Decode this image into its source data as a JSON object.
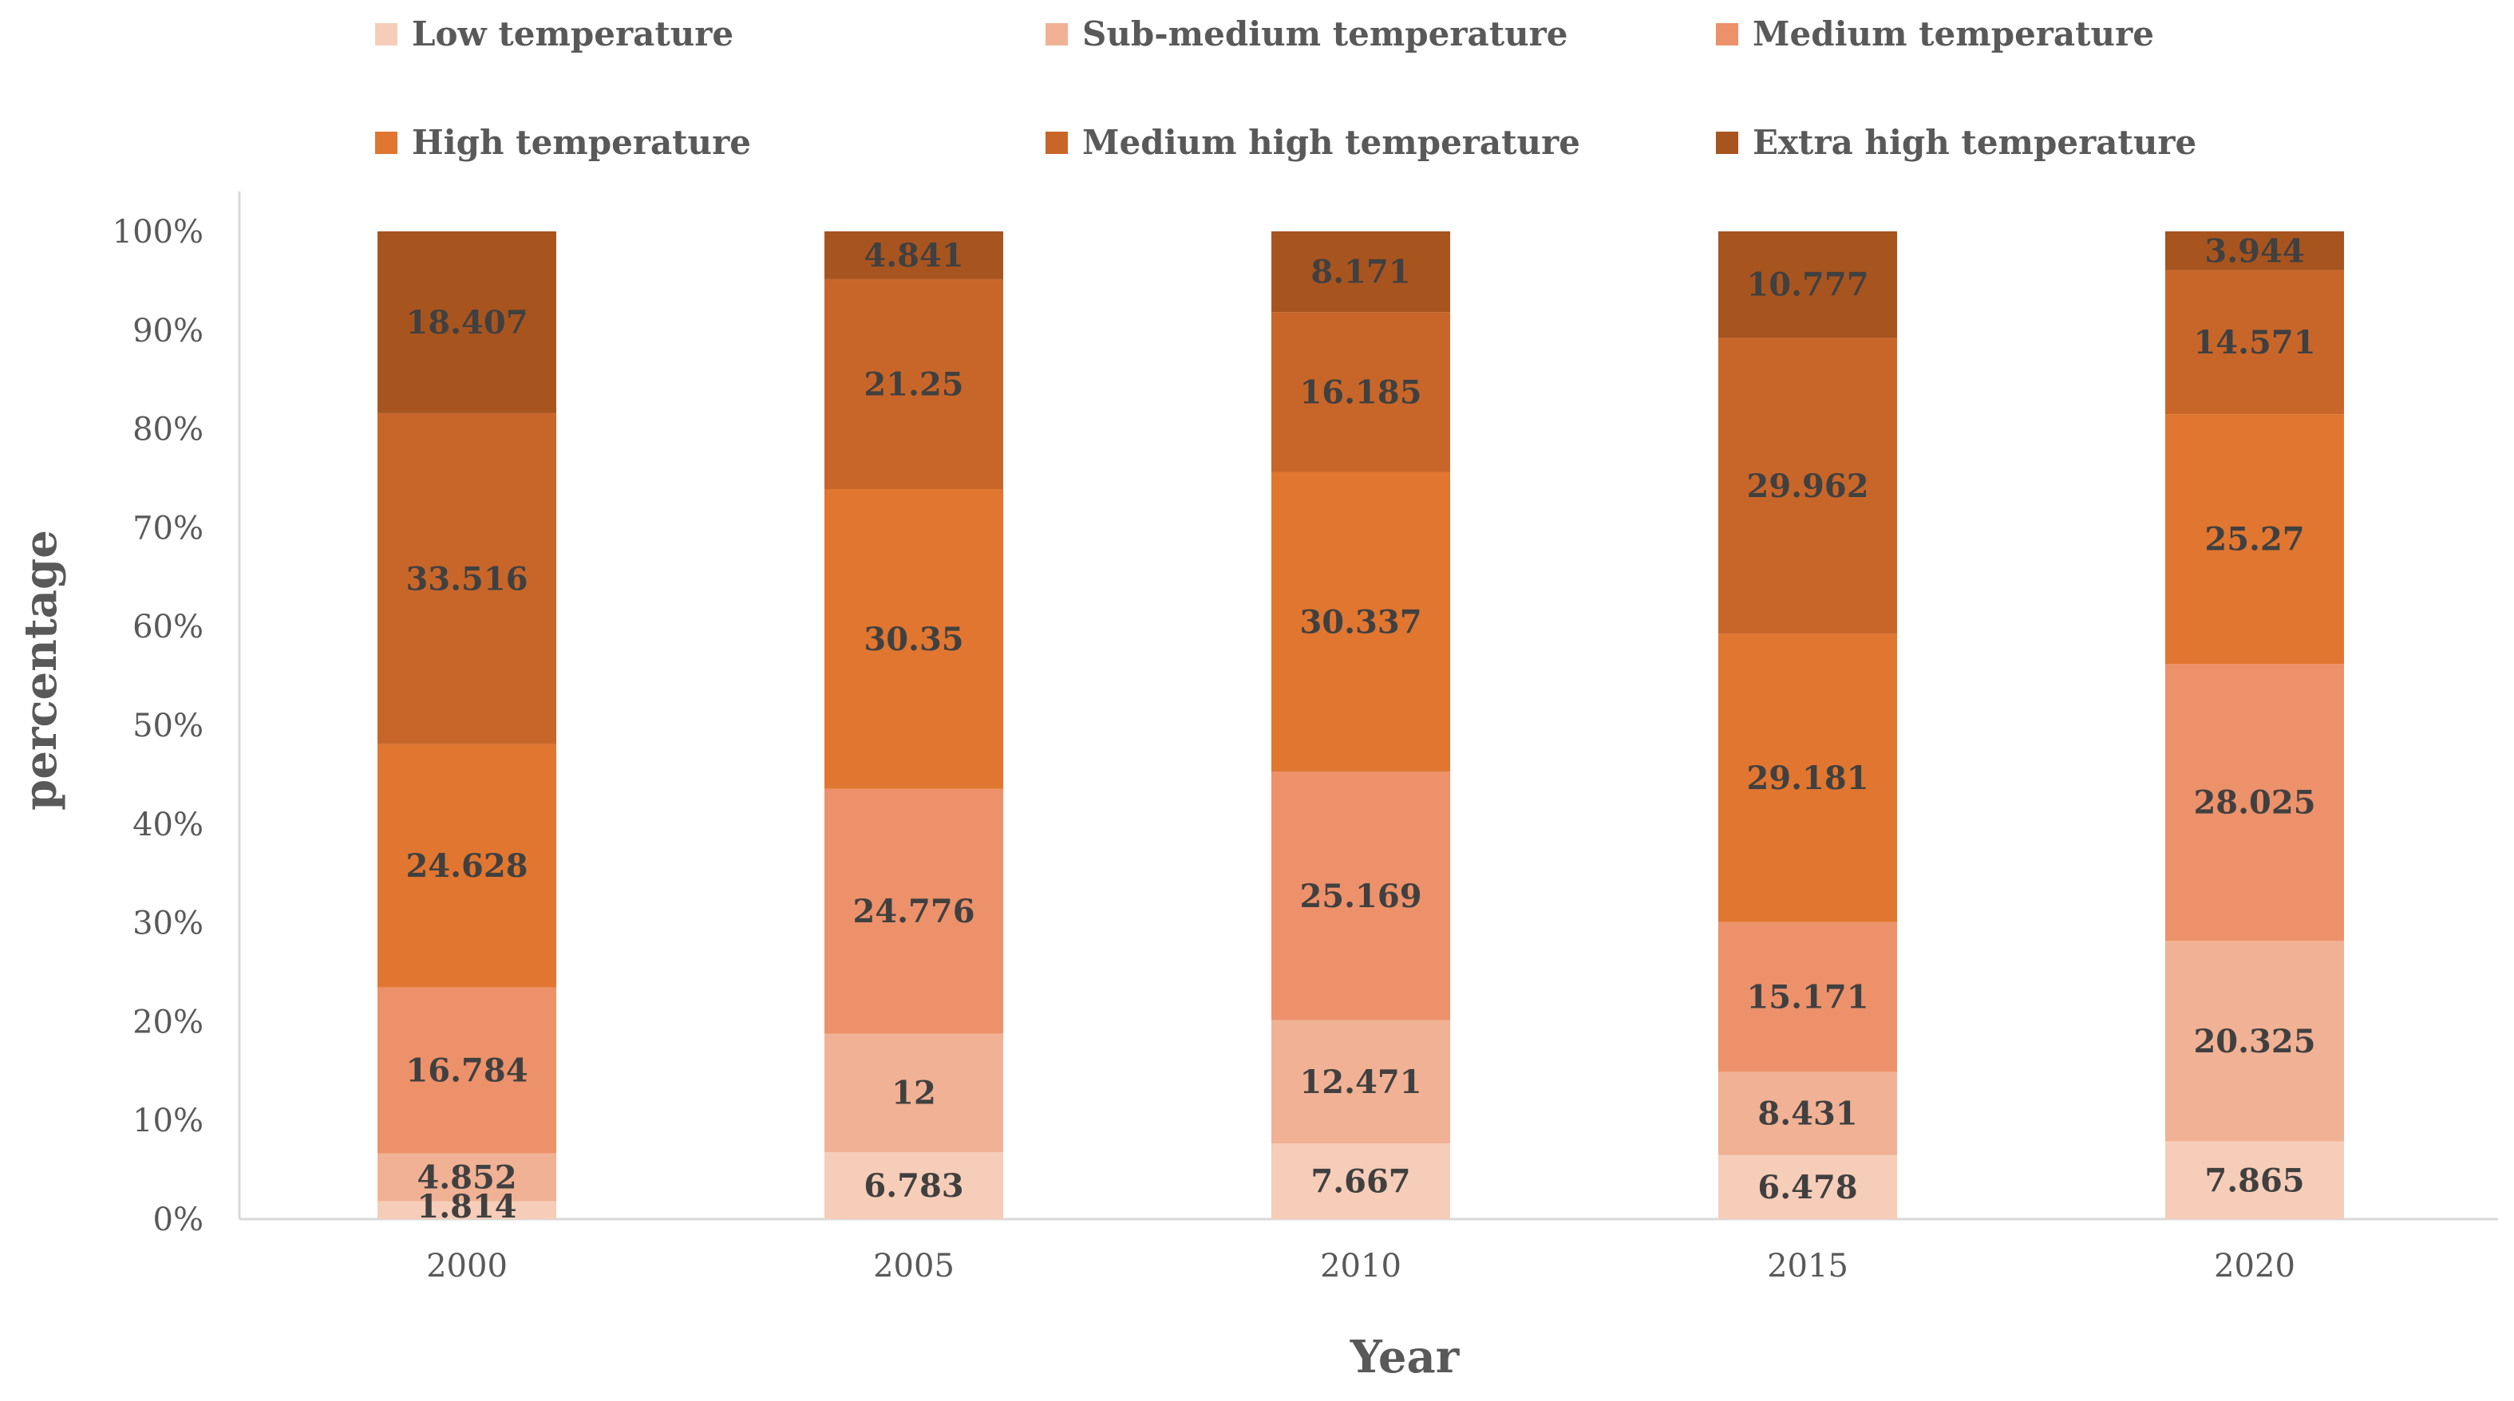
{
  "chart_data": {
    "type": "bar",
    "stacked": true,
    "normalized": true,
    "categories": [
      "2000",
      "2005",
      "2010",
      "2015",
      "2020"
    ],
    "series": [
      {
        "name": "Low temperature",
        "color": "#f6cdb8",
        "values": [
          1.814,
          6.783,
          7.667,
          6.478,
          7.865
        ]
      },
      {
        "name": "Sub-medium temperature",
        "color": "#f1b194",
        "values": [
          4.852,
          12,
          12.471,
          8.431,
          20.325
        ]
      },
      {
        "name": "Medium temperature",
        "color": "#ec916a",
        "values": [
          16.784,
          24.776,
          25.169,
          15.171,
          28.025
        ]
      },
      {
        "name": "High temperature",
        "color": "#e07630",
        "values": [
          24.628,
          30.35,
          30.337,
          29.181,
          25.27
        ]
      },
      {
        "name": "Medium high temperature",
        "color": "#c8662a",
        "values": [
          33.516,
          21.25,
          16.185,
          29.962,
          14.571
        ]
      },
      {
        "name": "Extra high temperature",
        "color": "#a8541f",
        "values": [
          18.407,
          4.841,
          8.171,
          10.777,
          3.944
        ]
      }
    ],
    "yticks": [
      "0%",
      "10%",
      "20%",
      "30%",
      "40%",
      "50%",
      "60%",
      "70%",
      "80%",
      "90%",
      "100%"
    ],
    "ylim": [
      0,
      100
    ],
    "xlabel": "Year",
    "ylabel": "percentage",
    "legend_position": "top"
  }
}
